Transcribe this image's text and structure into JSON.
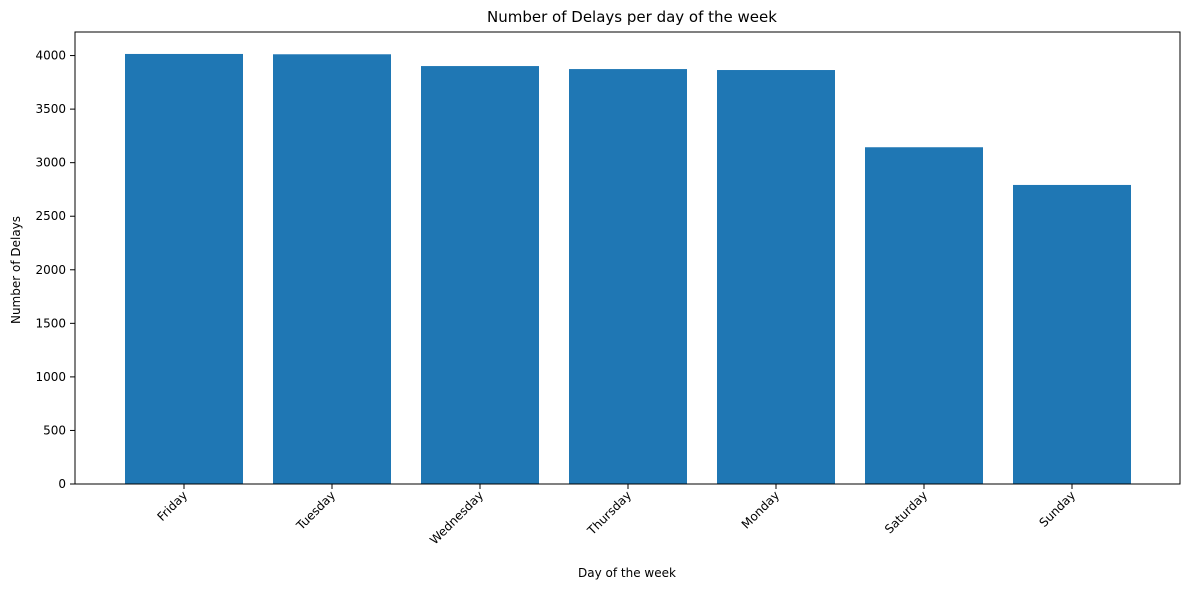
{
  "chart_data": {
    "type": "bar",
    "title": "Number of Delays per day of the week",
    "xlabel": "Day of the week",
    "ylabel": "Number of Delays",
    "categories": [
      "Friday",
      "Tuesday",
      "Wednesday",
      "Thursday",
      "Monday",
      "Saturday",
      "Sunday"
    ],
    "values": [
      4015,
      4012,
      3902,
      3874,
      3865,
      3144,
      2792
    ],
    "ylim": [
      0,
      4220
    ],
    "yticks": [
      0,
      500,
      1000,
      1500,
      2000,
      2500,
      3000,
      3500,
      4000
    ],
    "ytick_labels": [
      "0",
      "500",
      "1000",
      "1500",
      "2000",
      "2500",
      "3000",
      "3500",
      "4000"
    ],
    "bar_color": "#1f77b4",
    "grid": false,
    "legend": "none"
  }
}
